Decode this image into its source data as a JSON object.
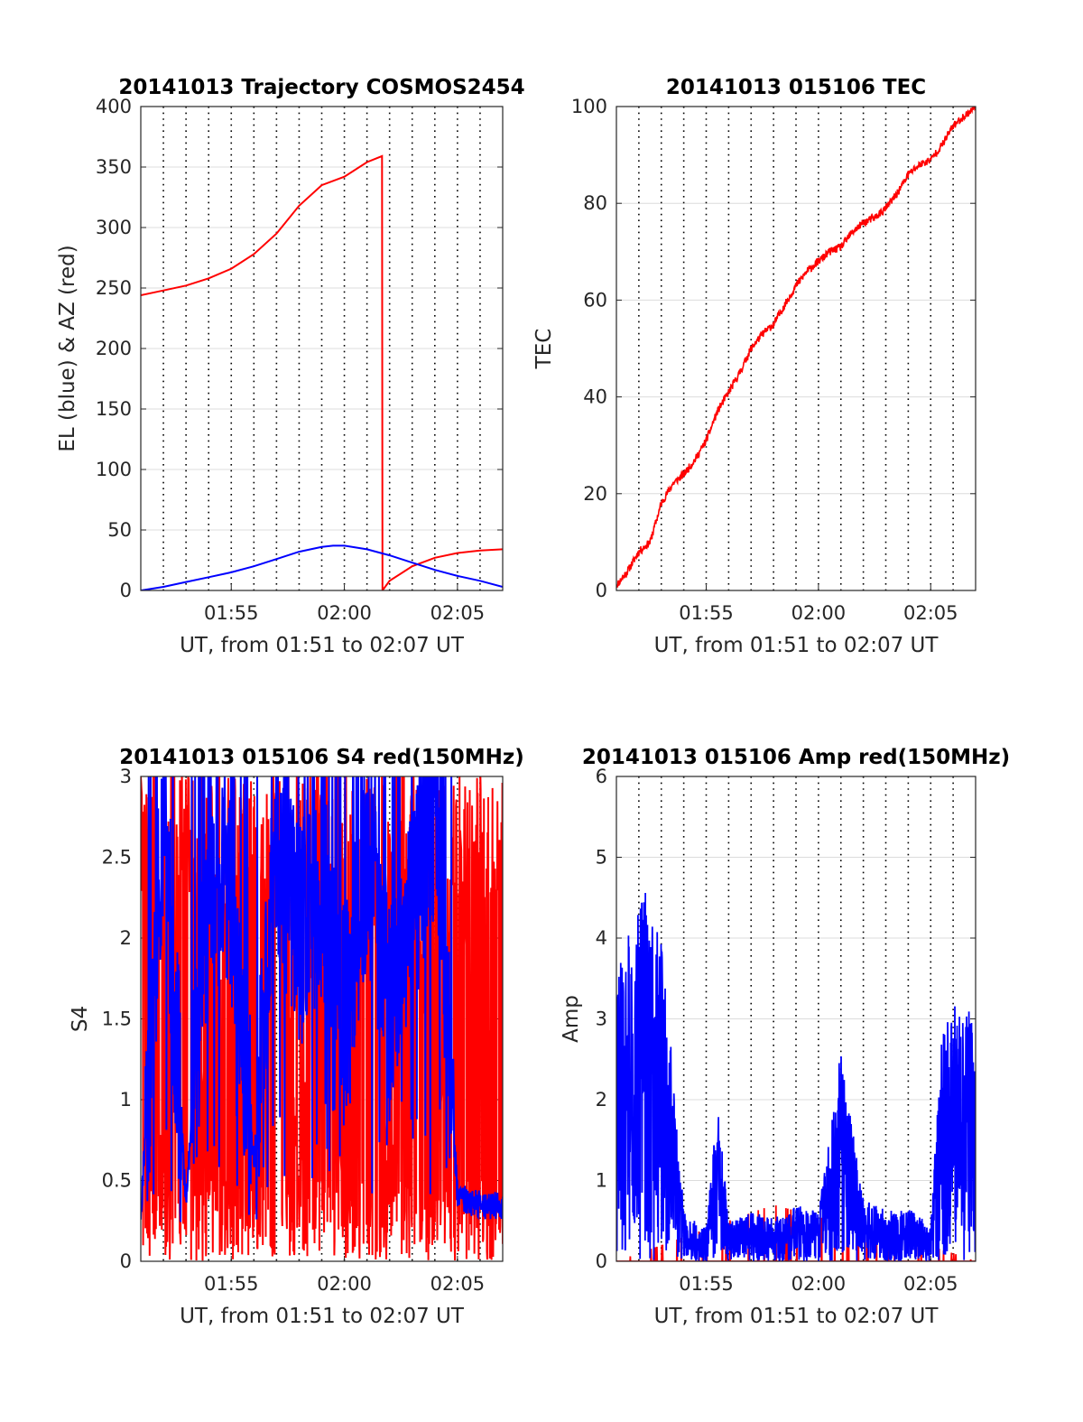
{
  "chart_data": [
    {
      "type": "line",
      "title": "20141013 Trajectory COSMOS2454",
      "xlabel": "UT, from 01:51 to 02:07 UT",
      "ylabel": "EL (blue) & AZ (red)",
      "xlim": [
        "01:51",
        "02:07"
      ],
      "ylim": [
        0,
        400
      ],
      "xtick_labels": [
        "01:55",
        "02:00",
        "02:05"
      ],
      "ytick_labels": [
        "0",
        "50",
        "100",
        "150",
        "200",
        "250",
        "300",
        "350",
        "400"
      ],
      "grid": true,
      "series": [
        {
          "color": "#ff0000",
          "points": [
            [
              "01:51",
              244
            ],
            [
              "01:52",
              248
            ],
            [
              "01:53",
              252
            ],
            [
              "01:54",
              258
            ],
            [
              "01:55",
              266
            ],
            [
              "01:56",
              278
            ],
            [
              "01:57",
              295
            ],
            [
              "01:58",
              318
            ],
            [
              "01:59",
              335
            ],
            [
              "02:00",
              342
            ],
            [
              "02:01",
              354
            ],
            [
              "02:01:40",
              359
            ],
            [
              "02:01:41",
              0
            ],
            [
              "02:02",
              8
            ],
            [
              "02:03",
              20
            ],
            [
              "02:04",
              27
            ],
            [
              "02:05",
              31
            ],
            [
              "02:06",
              33
            ],
            [
              "02:07",
              34
            ]
          ]
        },
        {
          "color": "#0000ff",
          "points": [
            [
              "01:51",
              0
            ],
            [
              "01:52",
              3
            ],
            [
              "01:53",
              7
            ],
            [
              "01:54",
              11
            ],
            [
              "01:55",
              15
            ],
            [
              "01:56",
              20
            ],
            [
              "01:57",
              26
            ],
            [
              "01:58",
              32
            ],
            [
              "01:59",
              36
            ],
            [
              "01:59:30",
              37
            ],
            [
              "02:00",
              37
            ],
            [
              "02:01",
              34
            ],
            [
              "02:02",
              29
            ],
            [
              "02:03",
              23
            ],
            [
              "02:04",
              17
            ],
            [
              "02:05",
              12
            ],
            [
              "02:06",
              8
            ],
            [
              "02:07",
              3
            ]
          ]
        }
      ]
    },
    {
      "type": "line",
      "title": "20141013 015106 TEC",
      "xlabel": "UT, from 01:51 to 02:07 UT",
      "ylabel": "TEC",
      "xlim": [
        "01:51",
        "02:07"
      ],
      "ylim": [
        0,
        100
      ],
      "xtick_labels": [
        "01:55",
        "02:00",
        "02:05"
      ],
      "ytick_labels": [
        "0",
        "20",
        "40",
        "60",
        "80",
        "100"
      ],
      "grid": true,
      "series": [
        {
          "color": "#ff0000",
          "points": [
            [
              "01:51",
              1
            ],
            [
              "01:51:30",
              4
            ],
            [
              "01:52",
              8
            ],
            [
              "01:52:30",
              10
            ],
            [
              "01:53",
              18
            ],
            [
              "01:53:30",
              22
            ],
            [
              "01:54",
              24
            ],
            [
              "01:54:30",
              27
            ],
            [
              "01:55",
              31
            ],
            [
              "01:55:30",
              37
            ],
            [
              "01:56",
              41
            ],
            [
              "01:56:30",
              45
            ],
            [
              "01:57",
              50
            ],
            [
              "01:57:30",
              53
            ],
            [
              "01:58",
              55
            ],
            [
              "01:58:30",
              59
            ],
            [
              "01:59",
              63
            ],
            [
              "01:59:30",
              66
            ],
            [
              "02:00",
              68
            ],
            [
              "02:00:30",
              70
            ],
            [
              "02:01",
              71
            ],
            [
              "02:01:30",
              74
            ],
            [
              "02:02",
              76
            ],
            [
              "02:02:30",
              77
            ],
            [
              "02:03",
              79
            ],
            [
              "02:03:30",
              82
            ],
            [
              "02:04",
              86
            ],
            [
              "02:04:30",
              88
            ],
            [
              "02:05",
              89
            ],
            [
              "02:05:30",
              92
            ],
            [
              "02:06",
              96
            ],
            [
              "02:07",
              100
            ]
          ]
        }
      ]
    },
    {
      "type": "line",
      "title": "20141013 015106 S4 red(150MHz)",
      "xlabel": "UT, from 01:51 to 02:07 UT",
      "ylabel": "S4",
      "xlim": [
        "01:51",
        "02:07"
      ],
      "ylim": [
        0,
        3
      ],
      "xtick_labels": [
        "01:55",
        "02:00",
        "02:05"
      ],
      "ytick_labels": [
        "0",
        "0.5",
        "1",
        "1.5",
        "2",
        "2.5",
        "3"
      ],
      "grid": true,
      "series": [
        {
          "color": "#ff0000",
          "points": [
            [
              "01:51",
              3
            ],
            [
              "01:52",
              0.5
            ],
            [
              "01:53",
              3
            ],
            [
              "01:54",
              0.3
            ],
            [
              "01:55",
              3
            ],
            [
              "01:56",
              0.2
            ],
            [
              "01:57",
              3
            ],
            [
              "01:58",
              0.4
            ],
            [
              "01:59",
              3
            ],
            [
              "02:00",
              0.2
            ],
            [
              "02:01",
              3
            ],
            [
              "02:02",
              0.3
            ],
            [
              "02:03",
              3
            ],
            [
              "02:04",
              0.2
            ],
            [
              "02:05",
              3
            ],
            [
              "02:06",
              0.3
            ],
            [
              "02:07",
              3
            ]
          ]
        },
        {
          "color": "#0000ff",
          "points": [
            [
              "01:51",
              0.3
            ],
            [
              "01:52",
              2.8
            ],
            [
              "01:53",
              0.35
            ],
            [
              "01:54",
              2.4
            ],
            [
              "01:55",
              2.2
            ],
            [
              "01:56",
              0.6
            ],
            [
              "01:57",
              2.6
            ],
            [
              "01:58",
              2.0
            ],
            [
              "01:59",
              2.3
            ],
            [
              "02:00",
              1.5
            ],
            [
              "02:01",
              2.5
            ],
            [
              "02:02",
              1.6
            ],
            [
              "02:03",
              2.2
            ],
            [
              "02:04",
              2.8
            ],
            [
              "02:05",
              0.4
            ],
            [
              "02:06",
              0.35
            ],
            [
              "02:07",
              0.35
            ]
          ]
        }
      ]
    },
    {
      "type": "line",
      "title": "20141013 015106 Amp red(150MHz)",
      "xlabel": "UT, from 01:51 to 02:07 UT",
      "ylabel": "Amp",
      "xlim": [
        "01:51",
        "02:07"
      ],
      "ylim": [
        0,
        6
      ],
      "xtick_labels": [
        "01:55",
        "02:00",
        "02:05"
      ],
      "ytick_labels": [
        "0",
        "1",
        "2",
        "3",
        "4",
        "5",
        "6"
      ],
      "grid": true,
      "series": [
        {
          "color": "#ff0000",
          "points": [
            [
              "01:51",
              0
            ],
            [
              "01:58",
              0.7
            ],
            [
              "02:06",
              0.1
            ],
            [
              "02:07",
              0
            ]
          ]
        },
        {
          "color": "#0000ff",
          "points": [
            [
              "01:51",
              3.5
            ],
            [
              "01:52",
              4.5
            ],
            [
              "01:53",
              4.0
            ],
            [
              "01:54",
              0.6
            ],
            [
              "01:55",
              0.4
            ],
            [
              "01:55:30",
              1.9
            ],
            [
              "01:56",
              0.5
            ],
            [
              "01:57",
              0.6
            ],
            [
              "01:58",
              0.5
            ],
            [
              "01:59",
              0.7
            ],
            [
              "02:00",
              0.6
            ],
            [
              "02:01",
              2.5
            ],
            [
              "02:02",
              0.8
            ],
            [
              "02:03",
              0.6
            ],
            [
              "02:04",
              0.7
            ],
            [
              "02:05",
              0.4
            ],
            [
              "02:05:30",
              2.9
            ],
            [
              "02:06",
              3.2
            ],
            [
              "02:07",
              3.0
            ]
          ]
        }
      ]
    }
  ]
}
